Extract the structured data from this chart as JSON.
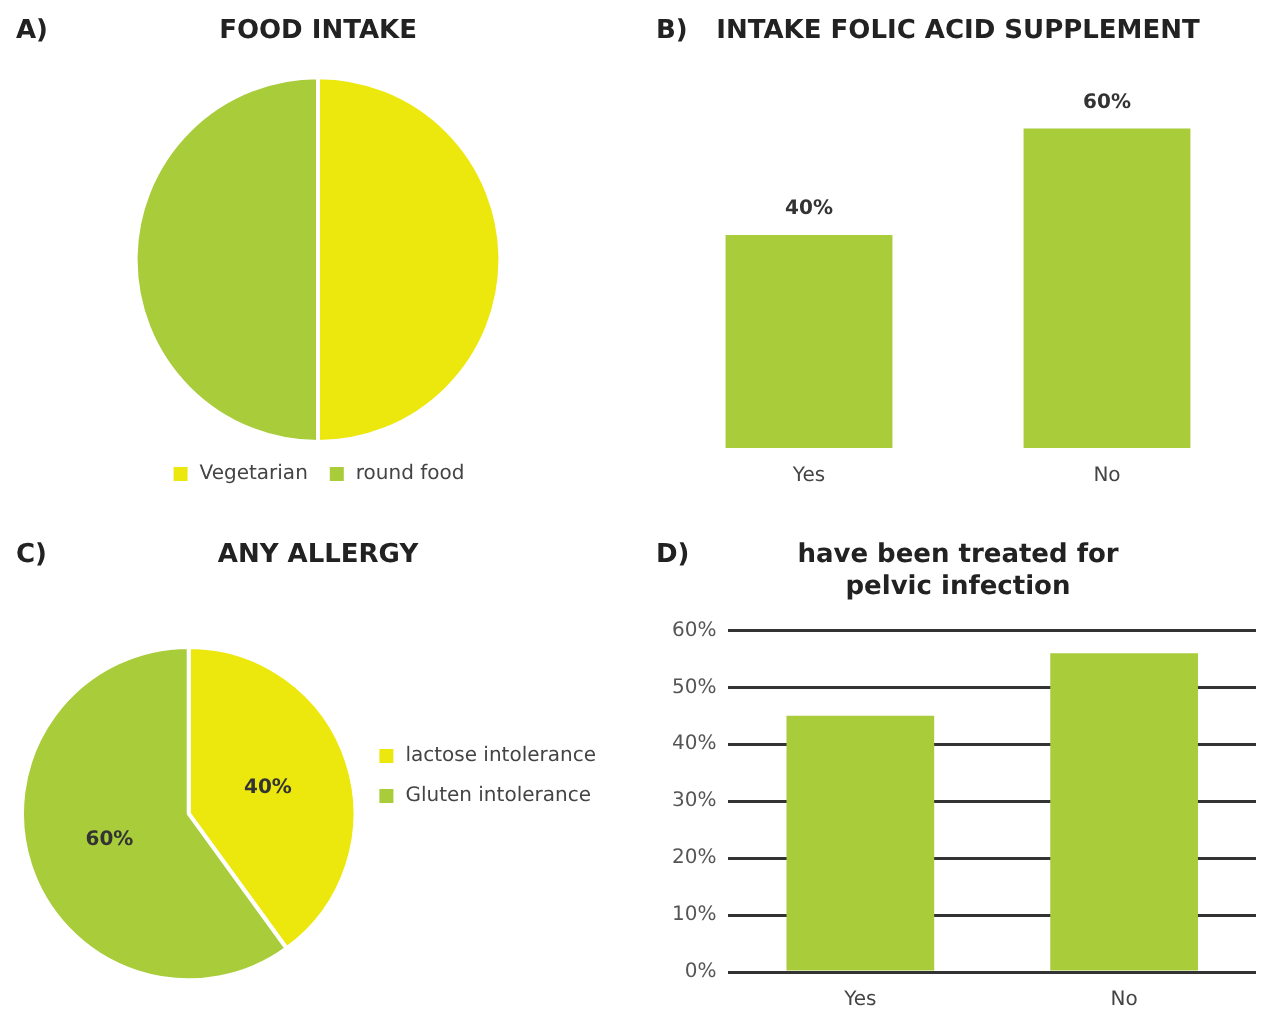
{
  "chart_data": [
    {
      "type": "pie",
      "title": "FOOD INTAKE",
      "annotations": [
        "A)"
      ],
      "categories": [
        "Vegetarian",
        "round food"
      ],
      "values": [
        50,
        50
      ],
      "colors": [
        "#ece70d",
        "#a8cc3a"
      ],
      "legend": "bottom"
    },
    {
      "type": "bar",
      "title": "INTAKE FOLIC ACID SUPPLEMENT",
      "annotations": [
        "B)"
      ],
      "categories": [
        "Yes",
        "No"
      ],
      "values": [
        40,
        60
      ],
      "value_labels": [
        "40%",
        "60%"
      ],
      "color": "#a8cc3a",
      "tick_labels": "x",
      "grid": false,
      "legend": false
    },
    {
      "type": "pie",
      "title": "ANY ALLERGY",
      "annotations": [
        "C)"
      ],
      "categories": [
        "lactose intolerance",
        "Gluten intolerance"
      ],
      "values": [
        40,
        60
      ],
      "value_labels": [
        "40%",
        "60%"
      ],
      "colors": [
        "#ece70d",
        "#a8cc3a"
      ],
      "legend": "right"
    },
    {
      "type": "bar",
      "title": "have been treated for\npelvic infection",
      "annotations": [
        "D)"
      ],
      "categories": [
        "Yes",
        "No"
      ],
      "values": [
        45,
        56
      ],
      "color": "#a8cc3a",
      "ylim": [
        0,
        60
      ],
      "yticks": [
        {
          "value": 0,
          "label": "0%"
        },
        {
          "value": 10,
          "label": "10%"
        },
        {
          "value": 20,
          "label": "20%"
        },
        {
          "value": 30,
          "label": "30%"
        },
        {
          "value": 40,
          "label": "40%"
        },
        {
          "value": 50,
          "label": "50%"
        },
        {
          "value": 60,
          "label": "60%"
        }
      ],
      "grid": "y",
      "legend": false
    }
  ]
}
